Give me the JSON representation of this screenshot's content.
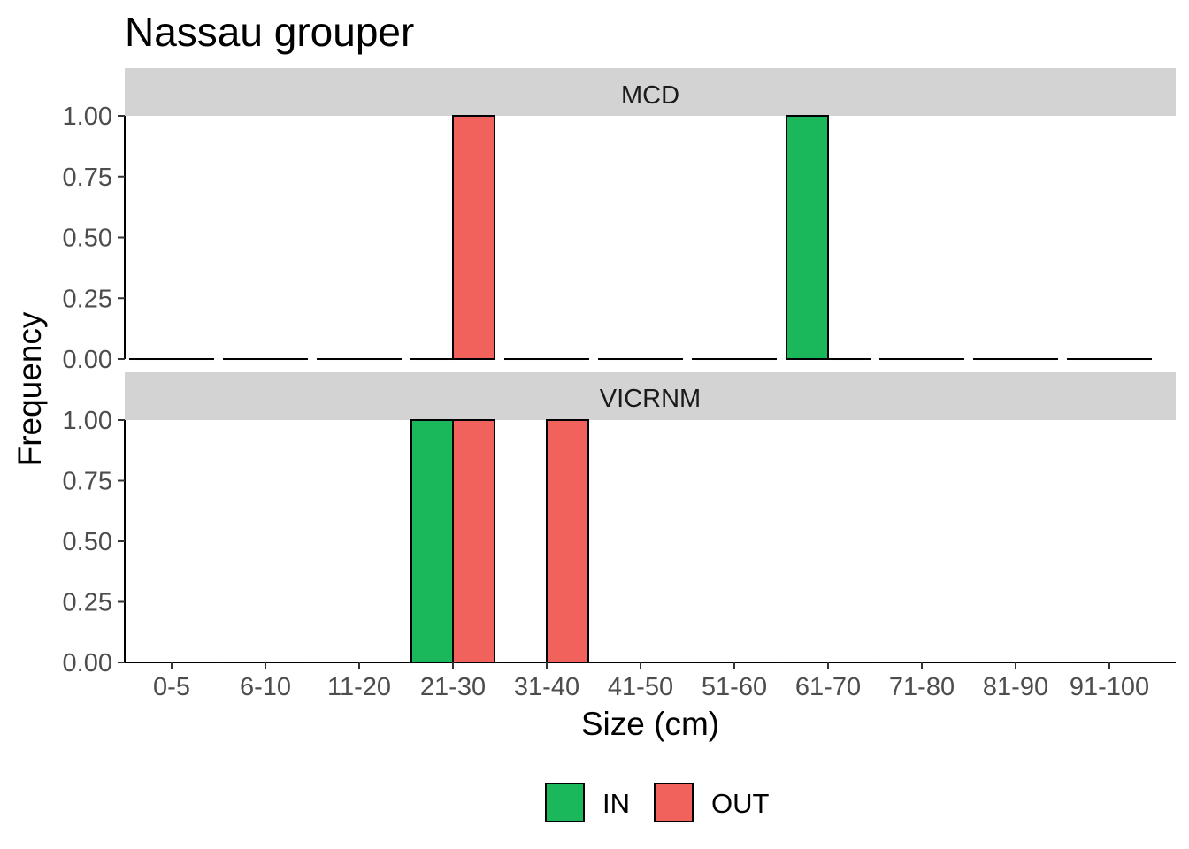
{
  "chart_data": {
    "type": "bar",
    "title": "Nassau grouper",
    "xlabel": "Size (cm)",
    "ylabel": "Frequency",
    "ylim": [
      0,
      1.0
    ],
    "yticks": [
      "0.00",
      "0.25",
      "0.50",
      "0.75",
      "1.00"
    ],
    "categories": [
      "0-5",
      "6-10",
      "11-20",
      "21-30",
      "31-40",
      "41-50",
      "51-60",
      "61-70",
      "71-80",
      "81-90",
      "91-100"
    ],
    "facets": [
      {
        "label": "MCD",
        "series": [
          {
            "name": "IN",
            "values": [
              0,
              0,
              0,
              0,
              0,
              0,
              0,
              1,
              0,
              0,
              0
            ]
          },
          {
            "name": "OUT",
            "values": [
              0,
              0,
              0,
              1,
              0,
              0,
              0,
              0,
              0,
              0,
              0
            ]
          }
        ]
      },
      {
        "label": "VICRNM",
        "series": [
          {
            "name": "IN",
            "values": [
              0,
              0,
              0,
              1,
              0,
              0,
              0,
              0,
              0,
              0,
              0
            ]
          },
          {
            "name": "OUT",
            "values": [
              0,
              0,
              0,
              1,
              1,
              0,
              0,
              0,
              0,
              0,
              0
            ]
          }
        ]
      }
    ],
    "legend": {
      "position": "bottom",
      "entries": [
        {
          "name": "IN",
          "color": "#1ab85a"
        },
        {
          "name": "OUT",
          "color": "#f2625d"
        }
      ]
    },
    "grid": false,
    "strip_color": "#d3d3d3"
  }
}
